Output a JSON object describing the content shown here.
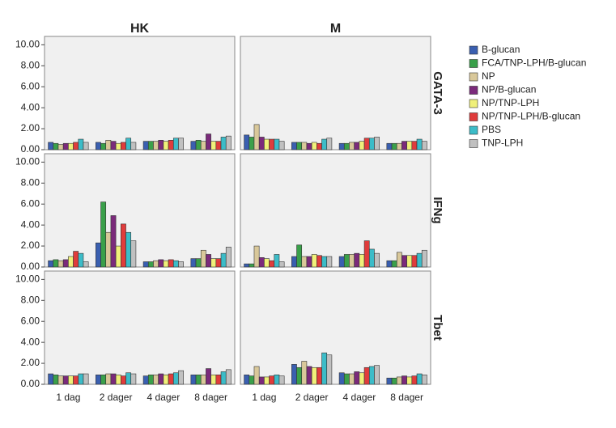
{
  "chart_data": {
    "type": "bar",
    "columns": [
      "HK",
      "M"
    ],
    "rows": [
      "GATA-3",
      "IFNg",
      "Tbet"
    ],
    "categories": [
      "1 dag",
      "2 dager",
      "4 dager",
      "8 dager"
    ],
    "series": [
      {
        "name": "B-glucan",
        "color": "#3a5fb0"
      },
      {
        "name": "FCA/TNP-LPH/B-glucan",
        "color": "#3aa04a"
      },
      {
        "name": "NP",
        "color": "#d9c89a"
      },
      {
        "name": "NP/B-glucan",
        "color": "#7b2a7b"
      },
      {
        "name": "NP/TNP-LPH",
        "color": "#f0f07a"
      },
      {
        "name": "NP/TNP-LPH/B-glucan",
        "color": "#e03c3c"
      },
      {
        "name": "PBS",
        "color": "#3cbcc8"
      },
      {
        "name": "TNP-LPH",
        "color": "#c0c0c0"
      }
    ],
    "ylim": [
      0,
      10.8
    ],
    "yticks": [
      {
        "value": 0,
        "label": "0.00"
      },
      {
        "value": 2,
        "label": "2.00"
      },
      {
        "value": 4,
        "label": "4.00"
      },
      {
        "value": 6,
        "label": "6.00"
      },
      {
        "value": 8,
        "label": "8.00"
      },
      {
        "value": 10,
        "label": "10.00"
      }
    ],
    "panels": [
      {
        "values": [
          [
            0.7,
            0.7,
            0.8,
            0.8
          ],
          [
            0.6,
            0.6,
            0.8,
            0.9
          ],
          [
            0.5,
            0.9,
            0.8,
            0.8
          ],
          [
            0.6,
            0.8,
            0.9,
            1.5
          ],
          [
            0.6,
            0.6,
            0.8,
            0.8
          ],
          [
            0.7,
            0.7,
            0.9,
            0.8
          ],
          [
            1.0,
            1.1,
            1.1,
            1.2
          ],
          [
            0.7,
            0.7,
            1.1,
            1.3
          ]
        ]
      },
      {
        "values": [
          [
            1.4,
            0.7,
            0.6,
            0.6
          ],
          [
            1.2,
            0.7,
            0.6,
            0.6
          ],
          [
            2.4,
            0.7,
            0.7,
            0.6
          ],
          [
            1.2,
            0.6,
            0.7,
            0.8
          ],
          [
            1.0,
            0.7,
            0.8,
            0.8
          ],
          [
            1.0,
            0.6,
            1.1,
            0.8
          ],
          [
            1.0,
            1.0,
            1.1,
            1.0
          ],
          [
            0.8,
            1.1,
            1.2,
            0.8
          ]
        ]
      },
      {
        "values": [
          [
            0.6,
            2.3,
            0.5,
            0.8
          ],
          [
            0.7,
            6.2,
            0.5,
            0.8
          ],
          [
            0.6,
            3.3,
            0.6,
            1.6
          ],
          [
            0.7,
            4.9,
            0.7,
            1.2
          ],
          [
            1.0,
            2.0,
            0.6,
            0.8
          ],
          [
            1.5,
            4.1,
            0.7,
            0.8
          ],
          [
            1.3,
            3.3,
            0.6,
            1.3
          ],
          [
            0.5,
            2.5,
            0.5,
            1.9
          ]
        ]
      },
      {
        "values": [
          [
            0.3,
            1.0,
            1.0,
            0.6
          ],
          [
            0.3,
            2.1,
            1.2,
            0.6
          ],
          [
            2.0,
            1.0,
            1.2,
            1.4
          ],
          [
            0.9,
            1.0,
            1.3,
            1.1
          ],
          [
            0.8,
            1.2,
            1.2,
            1.1
          ],
          [
            0.6,
            1.1,
            2.5,
            1.1
          ],
          [
            1.2,
            1.0,
            1.7,
            1.3
          ],
          [
            0.5,
            1.0,
            1.3,
            1.6
          ]
        ]
      },
      {
        "values": [
          [
            1.0,
            0.9,
            0.8,
            0.9
          ],
          [
            0.9,
            0.9,
            0.9,
            0.9
          ],
          [
            0.8,
            1.0,
            0.9,
            0.9
          ],
          [
            0.8,
            1.0,
            1.0,
            1.5
          ],
          [
            0.8,
            0.9,
            0.9,
            0.9
          ],
          [
            0.8,
            0.8,
            1.0,
            0.9
          ],
          [
            1.0,
            1.1,
            1.1,
            1.2
          ],
          [
            1.0,
            1.0,
            1.3,
            1.4
          ]
        ]
      },
      {
        "values": [
          [
            0.9,
            1.9,
            1.1,
            0.6
          ],
          [
            0.8,
            1.6,
            1.0,
            0.6
          ],
          [
            1.7,
            2.2,
            1.0,
            0.7
          ],
          [
            0.7,
            1.7,
            1.2,
            0.8
          ],
          [
            0.7,
            1.6,
            1.1,
            0.7
          ],
          [
            0.8,
            1.6,
            1.6,
            0.8
          ],
          [
            0.9,
            3.0,
            1.7,
            1.0
          ],
          [
            0.8,
            2.8,
            1.8,
            0.9
          ]
        ]
      }
    ]
  }
}
